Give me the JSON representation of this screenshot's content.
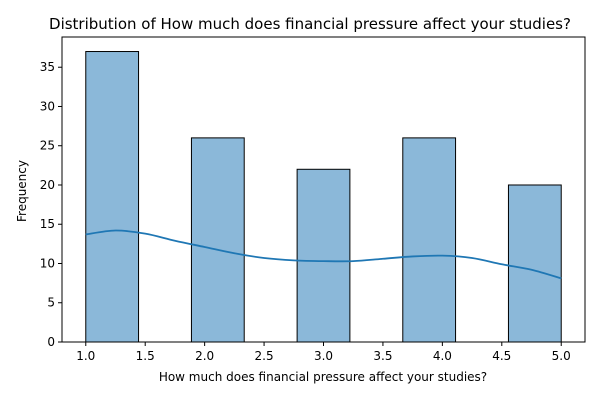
{
  "chart_data": {
    "type": "bar",
    "subtype": "histogram-with-kde",
    "title": "Distribution of How much does financial pressure affect your studies?",
    "xlabel": "How much does financial pressure affect your studies?",
    "ylabel": "Frequency",
    "xlim": [
      0.8,
      5.2
    ],
    "ylim": [
      0,
      38.85
    ],
    "xticks": [
      1.0,
      1.5,
      2.0,
      2.5,
      3.0,
      3.5,
      4.0,
      4.5,
      5.0
    ],
    "xtick_labels": [
      "1.0",
      "1.5",
      "2.0",
      "2.5",
      "3.0",
      "3.5",
      "4.0",
      "4.5",
      "5.0"
    ],
    "yticks": [
      0,
      5,
      10,
      15,
      20,
      25,
      30,
      35
    ],
    "ytick_labels": [
      "0",
      "5",
      "10",
      "15",
      "20",
      "25",
      "30",
      "35"
    ],
    "bins": [
      {
        "x0": 1.0,
        "x1": 1.444,
        "count": 37
      },
      {
        "x0": 1.444,
        "x1": 1.889,
        "count": 0
      },
      {
        "x0": 1.889,
        "x1": 2.333,
        "count": 26
      },
      {
        "x0": 2.333,
        "x1": 2.778,
        "count": 0
      },
      {
        "x0": 2.778,
        "x1": 3.222,
        "count": 22
      },
      {
        "x0": 3.222,
        "x1": 3.667,
        "count": 0
      },
      {
        "x0": 3.667,
        "x1": 4.111,
        "count": 26
      },
      {
        "x0": 4.111,
        "x1": 4.556,
        "count": 0
      },
      {
        "x0": 4.556,
        "x1": 5.0,
        "count": 20
      }
    ],
    "kde": {
      "x": [
        1.0,
        1.25,
        1.5,
        1.75,
        2.0,
        2.25,
        2.5,
        2.75,
        3.0,
        3.25,
        3.5,
        3.75,
        4.0,
        4.25,
        4.5,
        4.75,
        5.0
      ],
      "y": [
        13.7,
        14.2,
        13.8,
        12.9,
        12.1,
        11.3,
        10.7,
        10.4,
        10.3,
        10.3,
        10.6,
        10.9,
        11.0,
        10.7,
        9.9,
        9.2,
        8.1
      ]
    },
    "grid": false,
    "legend": "none",
    "colors": {
      "bar_fill": "#8bb8d9",
      "bar_edge": "#000000",
      "kde_line": "#1f77b4",
      "axis": "#000000"
    }
  }
}
